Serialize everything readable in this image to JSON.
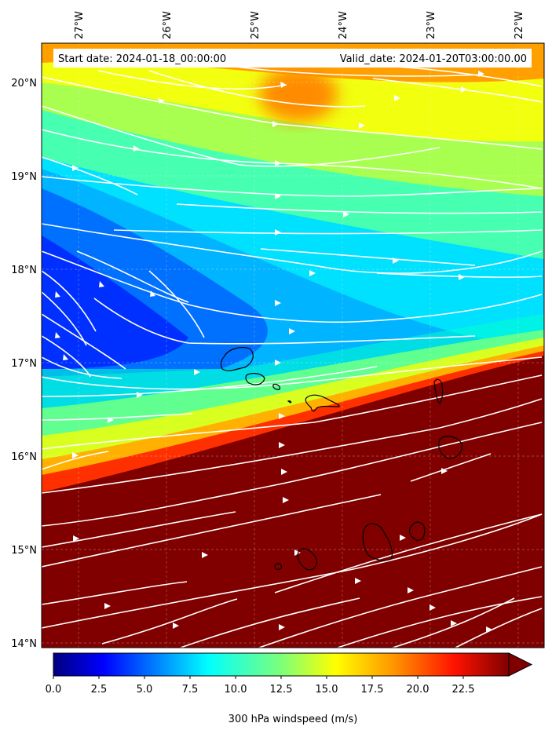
{
  "header": {
    "start_date": "Start date: 2024-01-18_00:00:00",
    "valid_date": "Valid_date: 2024-01-20T03:00:00.00"
  },
  "axes": {
    "lon_labels": [
      "27°W",
      "26°W",
      "25°W",
      "24°W",
      "23°W",
      "22°W"
    ],
    "lat_labels": [
      "20°N",
      "19°N",
      "18°N",
      "17°N",
      "16°N",
      "15°N",
      "14°N"
    ]
  },
  "colorbar": {
    "label": "300 hPa windspeed (m/s)",
    "ticks": [
      "0.0",
      "2.5",
      "5.0",
      "7.5",
      "10.0",
      "12.5",
      "15.0",
      "17.5",
      "20.0",
      "22.5"
    ],
    "min": 0,
    "max": 25,
    "extend": "max",
    "colormap": "jet"
  },
  "colors": {
    "streamline": "#ffffff",
    "coastline": "#000000",
    "max_wind": "#800000"
  }
}
